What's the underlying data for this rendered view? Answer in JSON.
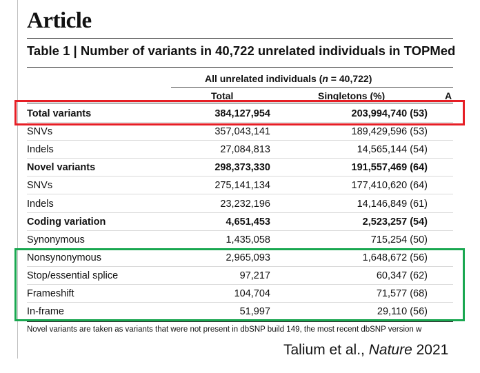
{
  "article_label": "Article",
  "table_title": "Table 1 | Number of variants in 40,722 unrelated individuals in TOPMed",
  "group_header_prefix": "All unrelated individuals (",
  "group_header_italic": "n",
  "group_header_suffix": " = 40,722)",
  "columns": {
    "total": "Total",
    "singletons": "Singletons (%)",
    "cut": "A"
  },
  "rows": [
    {
      "label": "Total variants",
      "total": "384,127,954",
      "singletons": "203,994,740 (53)",
      "bold": true
    },
    {
      "label": "SNVs",
      "total": "357,043,141",
      "singletons": "189,429,596 (53)",
      "bold": false
    },
    {
      "label": "Indels",
      "total": "27,084,813",
      "singletons": "14,565,144 (54)",
      "bold": false
    },
    {
      "label": "Novel variants",
      "total": "298,373,330",
      "singletons": "191,557,469 (64)",
      "bold": true
    },
    {
      "label": "SNVs",
      "total": "275,141,134",
      "singletons": "177,410,620 (64)",
      "bold": false
    },
    {
      "label": "Indels",
      "total": "23,232,196",
      "singletons": "14,146,849 (61)",
      "bold": false
    },
    {
      "label": "Coding variation",
      "total": "4,651,453",
      "singletons": "2,523,257 (54)",
      "bold": true
    },
    {
      "label": "Synonymous",
      "total": "1,435,058",
      "singletons": "715,254 (50)",
      "bold": false
    },
    {
      "label": "Nonsynonymous",
      "total": "2,965,093",
      "singletons": "1,648,672 (56)",
      "bold": false
    },
    {
      "label": "Stop/essential splice",
      "total": "97,217",
      "singletons": "60,347 (62)",
      "bold": false
    },
    {
      "label": "Frameshift",
      "total": "104,704",
      "singletons": "71,577 (68)",
      "bold": false
    },
    {
      "label": "In-frame",
      "total": "51,997",
      "singletons": "29,110 (56)",
      "bold": false
    }
  ],
  "footnote": "Novel variants are taken as variants that were not present in dbSNP build 149, the most recent dbSNP version w",
  "citation": {
    "authors": "Talium et al., ",
    "journal": "Nature",
    "year": " 2021"
  },
  "colors": {
    "highlight_red": "#e61e25",
    "highlight_green": "#19a750"
  }
}
